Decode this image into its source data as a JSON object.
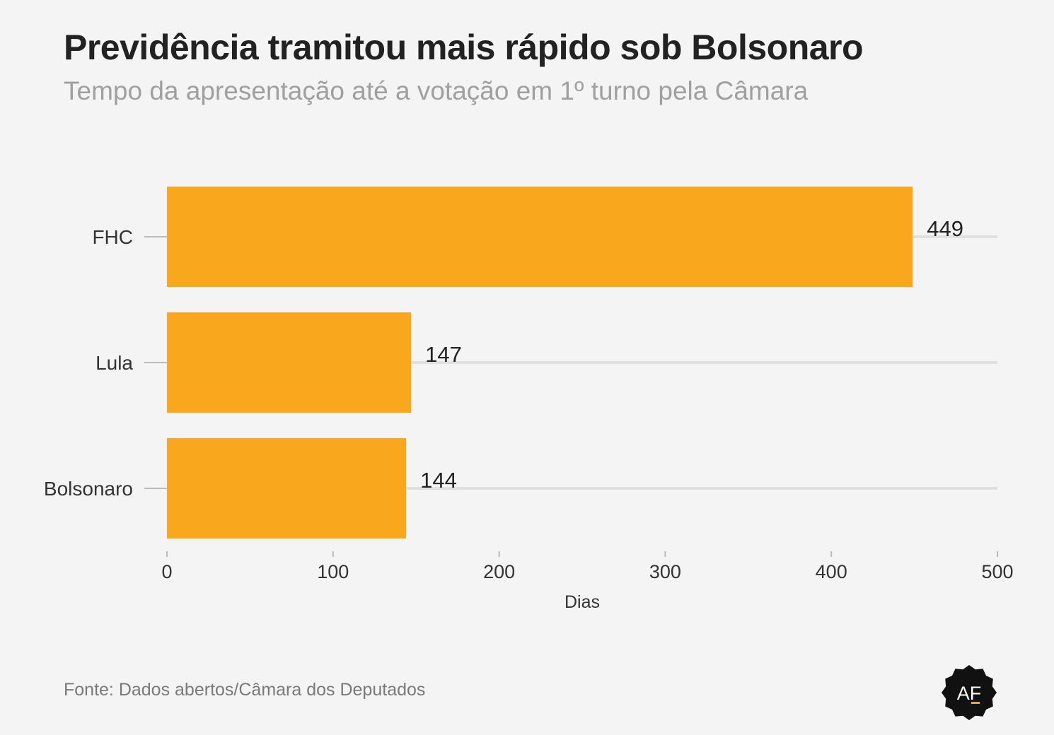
{
  "header": {
    "title": "Previdência tramitou mais rápido sob Bolsonaro",
    "subtitle": "Tempo da apresentação até a votação em 1º turno pela Câmara"
  },
  "footer": {
    "source": "Fonte: Dados abertos/Câmara dos Deputados",
    "logo_text": "AF"
  },
  "colors": {
    "bar": "#f9a71d",
    "gridline": "#e0e0e0",
    "text": "#333333",
    "logo_bg": "#111111",
    "logo_accent": "#f9a71d"
  },
  "chart_data": {
    "type": "bar",
    "orientation": "horizontal",
    "categories": [
      "FHC",
      "Lula",
      "Bolsonaro"
    ],
    "values": [
      449,
      147,
      144
    ],
    "value_labels": [
      "449",
      "147",
      "144"
    ],
    "xlabel": "Dias",
    "xlim": [
      0,
      500
    ],
    "xticks": [
      0,
      100,
      200,
      300,
      400,
      500
    ],
    "grid": true
  }
}
